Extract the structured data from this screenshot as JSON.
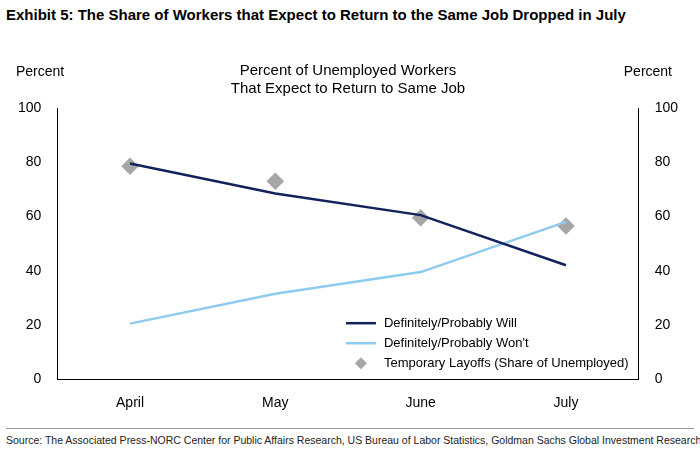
{
  "chart_data": {
    "type": "line",
    "title": "Exhibit 5: The Share of Workers that Expect to Return to the Same Job Dropped in July",
    "subtitle": [
      "Percent of Unemployed Workers",
      "That Expect to Return to Same Job"
    ],
    "y_label": "Percent",
    "y2_label": "Percent",
    "source": "Source: The Associated Press-NORC Center for Public Affairs Research, US Bureau of Labor Statistics, Goldman Sachs Global Investment Research",
    "categories": [
      "April",
      "May",
      "June",
      "July"
    ],
    "series": [
      {
        "name": "Definitely/Probably Will",
        "color": "#14225c",
        "type": "line",
        "marker": "none",
        "line_style": "solid",
        "values": [
          79.5,
          68.5,
          60.5,
          42
        ]
      },
      {
        "name": "Definitely/Probably Won't",
        "color": "#8ecbf0",
        "type": "line",
        "marker": "none",
        "line_style": "solid",
        "values": [
          20.5,
          31.5,
          39.5,
          58
        ]
      },
      {
        "name": "Temporary Layoffs (Share of Unemployed)",
        "color": "#a6a6a6",
        "type": "scatter",
        "marker": "diamond",
        "values": [
          78.5,
          73,
          59.5,
          56.5
        ]
      }
    ],
    "ylim": [
      0,
      100
    ],
    "yticks": [
      0,
      20,
      40,
      60,
      80,
      100
    ],
    "y2lim": [
      0,
      100
    ],
    "y2ticks": [
      0,
      20,
      40,
      60,
      80,
      100
    ],
    "grid": false,
    "legend": "lower right"
  }
}
